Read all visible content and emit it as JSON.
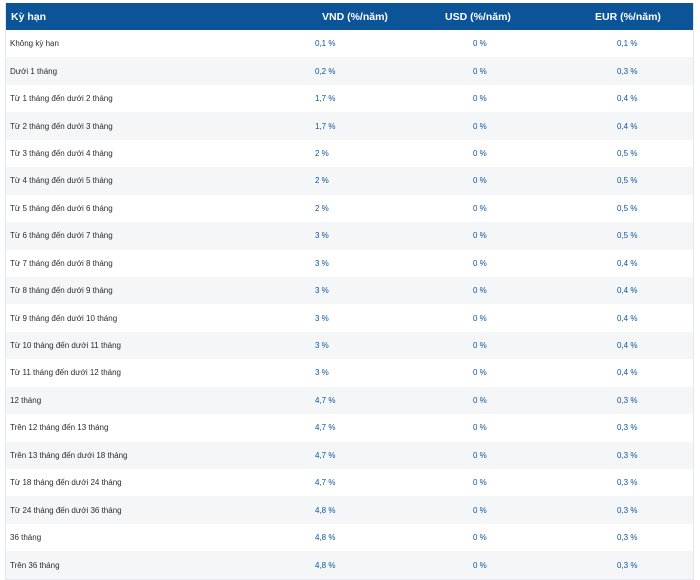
{
  "table": {
    "headers": {
      "term": "Kỳ hạn",
      "vnd": "VND (%/năm)",
      "usd": "USD (%/năm)",
      "eur": "EUR (%/năm)"
    },
    "rows": [
      {
        "term": "Không kỳ hạn",
        "vnd": "0,1 %",
        "usd": "0 %",
        "eur": "0,1 %"
      },
      {
        "term": "Dưới 1 tháng",
        "vnd": "0,2 %",
        "usd": "0 %",
        "eur": "0,3 %"
      },
      {
        "term": "Từ 1 tháng đến dưới 2 tháng",
        "vnd": "1,7 %",
        "usd": "0 %",
        "eur": "0,4 %"
      },
      {
        "term": "Từ 2 tháng đến dưới 3 tháng",
        "vnd": "1,7 %",
        "usd": "0 %",
        "eur": "0,4 %"
      },
      {
        "term": "Từ 3 tháng đến dưới 4 tháng",
        "vnd": "2 %",
        "usd": "0 %",
        "eur": "0,5 %"
      },
      {
        "term": "Từ 4 tháng đến dưới 5 tháng",
        "vnd": "2 %",
        "usd": "0 %",
        "eur": "0,5 %"
      },
      {
        "term": "Từ 5 tháng đến dưới 6 tháng",
        "vnd": "2 %",
        "usd": "0 %",
        "eur": "0,5 %"
      },
      {
        "term": "Từ 6 tháng đến dưới 7 tháng",
        "vnd": "3 %",
        "usd": "0 %",
        "eur": "0,5 %"
      },
      {
        "term": "Từ 7 tháng đến dưới 8 tháng",
        "vnd": "3 %",
        "usd": "0 %",
        "eur": "0,4 %"
      },
      {
        "term": "Từ 8 tháng đến dưới 9 tháng",
        "vnd": "3 %",
        "usd": "0 %",
        "eur": "0,4 %"
      },
      {
        "term": "Từ 9 tháng đến dưới 10 tháng",
        "vnd": "3 %",
        "usd": "0 %",
        "eur": "0,4 %"
      },
      {
        "term": "Từ 10 tháng đến dưới 11 tháng",
        "vnd": "3 %",
        "usd": "0 %",
        "eur": "0,4 %"
      },
      {
        "term": "Từ 11 tháng đến dưới 12 tháng",
        "vnd": "3 %",
        "usd": "0 %",
        "eur": "0,4 %"
      },
      {
        "term": "12 tháng",
        "vnd": "4,7 %",
        "usd": "0 %",
        "eur": "0,3 %"
      },
      {
        "term": "Trên 12 tháng đến 13 tháng",
        "vnd": "4,7 %",
        "usd": "0 %",
        "eur": "0,3 %"
      },
      {
        "term": "Trên 13 tháng đến dưới 18 tháng",
        "vnd": "4,7 %",
        "usd": "0 %",
        "eur": "0,3 %"
      },
      {
        "term": "Từ 18 tháng đến dưới 24 tháng",
        "vnd": "4,7 %",
        "usd": "0 %",
        "eur": "0,3 %"
      },
      {
        "term": "Từ 24 tháng đến dưới 36 tháng",
        "vnd": "4,8 %",
        "usd": "0 %",
        "eur": "0,3 %"
      },
      {
        "term": "36 tháng",
        "vnd": "4,8 %",
        "usd": "0 %",
        "eur": "0,3 %"
      },
      {
        "term": "Trên 36 tháng",
        "vnd": "4,8 %",
        "usd": "0 %",
        "eur": "0,3 %"
      }
    ]
  },
  "colors": {
    "header_bg": "#0b5497",
    "header_text": "#ffffff",
    "value_text": "#0b5497",
    "stripe_bg": "#f5f6f8"
  }
}
